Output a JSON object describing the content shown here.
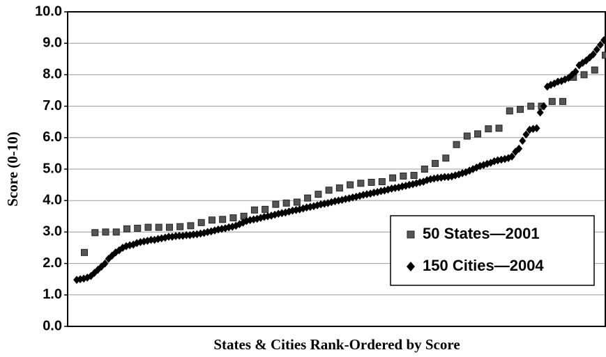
{
  "chart_data": {
    "type": "scatter",
    "x_label": "States & Cities Rank-Ordered by Score",
    "y_label": "Score  (0-10)",
    "ylim": [
      0,
      10
    ],
    "yticks": [
      {
        "value": 0,
        "label": "0.0"
      },
      {
        "value": 1,
        "label": "1.0"
      },
      {
        "value": 2,
        "label": "2.0"
      },
      {
        "value": 3,
        "label": "3.0"
      },
      {
        "value": 4,
        "label": "4.0"
      },
      {
        "value": 5,
        "label": "5.0"
      },
      {
        "value": 6,
        "label": "6.0"
      },
      {
        "value": 7,
        "label": "7.0"
      },
      {
        "value": 8,
        "label": "8.0"
      },
      {
        "value": 9,
        "label": "9.0"
      },
      {
        "value": 10,
        "label": "10.0"
      }
    ],
    "grid": true,
    "legend": "lower right",
    "series": [
      {
        "name": "50 States—2001",
        "color": "#555555",
        "marker": "square",
        "values": [
          2.35,
          2.98,
          3.0,
          3.0,
          3.1,
          3.12,
          3.15,
          3.15,
          3.15,
          3.17,
          3.2,
          3.3,
          3.38,
          3.4,
          3.45,
          3.5,
          3.7,
          3.72,
          3.88,
          3.92,
          3.95,
          4.08,
          4.2,
          4.33,
          4.4,
          4.5,
          4.55,
          4.58,
          4.6,
          4.72,
          4.78,
          4.8,
          5.0,
          5.18,
          5.35,
          5.78,
          6.05,
          6.12,
          6.28,
          6.3,
          6.85,
          6.9,
          7.0,
          7.0,
          7.15,
          7.15,
          7.92,
          8.0,
          8.15,
          8.62
        ]
      },
      {
        "name": "150 Cities—2004",
        "color": "#000000",
        "marker": "diamond",
        "values": [
          1.48,
          1.5,
          1.52,
          1.55,
          1.6,
          1.7,
          1.8,
          1.9,
          2.0,
          2.15,
          2.25,
          2.35,
          2.42,
          2.5,
          2.55,
          2.58,
          2.6,
          2.65,
          2.68,
          2.7,
          2.72,
          2.75,
          2.75,
          2.78,
          2.8,
          2.82,
          2.85,
          2.85,
          2.87,
          2.88,
          2.88,
          2.9,
          2.9,
          2.92,
          2.93,
          2.95,
          2.97,
          3.0,
          3.02,
          3.05,
          3.08,
          3.1,
          3.12,
          3.15,
          3.17,
          3.2,
          3.25,
          3.3,
          3.35,
          3.38,
          3.4,
          3.42,
          3.45,
          3.48,
          3.5,
          3.52,
          3.55,
          3.58,
          3.6,
          3.62,
          3.65,
          3.68,
          3.7,
          3.72,
          3.75,
          3.78,
          3.8,
          3.82,
          3.85,
          3.88,
          3.9,
          3.92,
          3.95,
          3.98,
          4.0,
          4.02,
          4.05,
          4.07,
          4.1,
          4.12,
          4.15,
          4.18,
          4.2,
          4.22,
          4.25,
          4.27,
          4.3,
          4.32,
          4.35,
          4.38,
          4.4,
          4.42,
          4.45,
          4.47,
          4.5,
          4.52,
          4.55,
          4.58,
          4.6,
          4.65,
          4.68,
          4.7,
          4.72,
          4.73,
          4.75,
          4.75,
          4.77,
          4.8,
          4.83,
          4.87,
          4.9,
          4.95,
          5.0,
          5.05,
          5.1,
          5.13,
          5.17,
          5.2,
          5.25,
          5.28,
          5.3,
          5.32,
          5.35,
          5.4,
          5.55,
          5.65,
          5.9,
          6.1,
          6.25,
          6.28,
          6.3,
          6.8,
          7.0,
          7.62,
          7.68,
          7.72,
          7.78,
          7.8,
          7.85,
          7.9,
          8.0,
          8.1,
          8.3,
          8.38,
          8.45,
          8.55,
          8.65,
          8.8,
          8.95,
          9.1
        ]
      }
    ]
  }
}
